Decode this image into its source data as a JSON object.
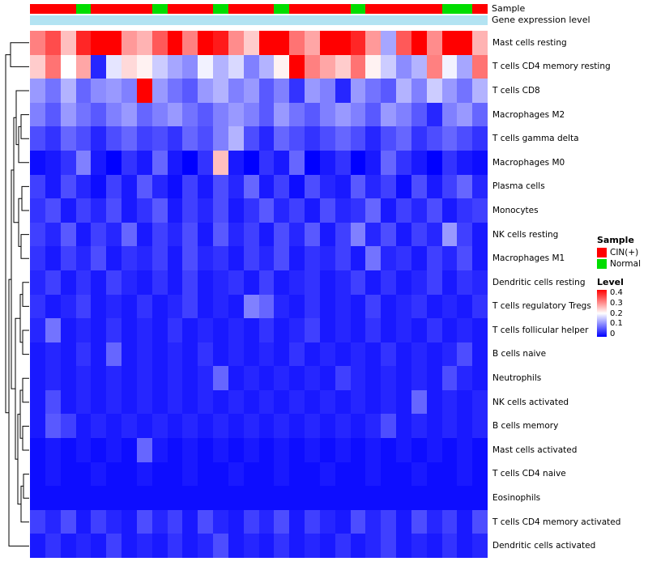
{
  "annotations": {
    "sample_label": "Sample",
    "gene_label": "Gene expression level",
    "gene_bar_color": "#B3E3F2",
    "sample_colors": {
      "CIN(+)": "#FF0000",
      "Normal": "#00DD00"
    }
  },
  "legends": {
    "sample": {
      "title": "Sample",
      "items": [
        {
          "label": "CIN(+)",
          "color": "#FF0000"
        },
        {
          "label": "Normal",
          "color": "#00DD00"
        }
      ]
    },
    "level": {
      "title": "Level",
      "ticks": [
        "0.4",
        "0.3",
        "0.2",
        "0.1",
        "0"
      ],
      "max_color": "#FF0000",
      "mid_color": "#FFFFFF",
      "min_color": "#0000FF"
    }
  },
  "chart_data": {
    "type": "heatmap",
    "title": "",
    "annotation_tracks": [
      "Sample",
      "Gene expression level"
    ],
    "rows": [
      "Mast cells resting",
      "T cells CD4 memory resting",
      "T cells CD8",
      "Macrophages M2",
      "T cells gamma delta",
      "Macrophages M0",
      "Plasma cells",
      "Monocytes",
      "NK cells resting",
      "Macrophages M1",
      "Dendritic cells resting",
      "T cells regulatory Tregs",
      "T cells follicular helper",
      "B cells naive",
      "Neutrophils",
      "NK cells activated",
      "B cells memory",
      "Mast cells activated",
      "T cells CD4 naive",
      "Eosinophils",
      "T cells CD4 memory activated",
      "Dendritic cells activated"
    ],
    "columns_count": 30,
    "column_annotation_sample": [
      "CIN(+)",
      "CIN(+)",
      "CIN(+)",
      "Normal",
      "CIN(+)",
      "CIN(+)",
      "CIN(+)",
      "CIN(+)",
      "Normal",
      "CIN(+)",
      "CIN(+)",
      "CIN(+)",
      "Normal",
      "CIN(+)",
      "CIN(+)",
      "CIN(+)",
      "Normal",
      "CIN(+)",
      "CIN(+)",
      "CIN(+)",
      "CIN(+)",
      "Normal",
      "CIN(+)",
      "CIN(+)",
      "CIN(+)",
      "CIN(+)",
      "CIN(+)",
      "Normal",
      "Normal",
      "CIN(+)"
    ],
    "color_scale": {
      "min": 0,
      "mid": 0.2,
      "max": 0.4,
      "colors": [
        "#0000FF",
        "#FFFFFF",
        "#FF0000"
      ]
    },
    "row_dendrogram": true,
    "values": [
      [
        0.3,
        0.34,
        0.25,
        0.37,
        0.42,
        0.4,
        0.28,
        0.26,
        0.33,
        0.41,
        0.3,
        0.43,
        0.38,
        0.29,
        0.24,
        0.42,
        0.4,
        0.31,
        0.27,
        0.4,
        0.43,
        0.37,
        0.28,
        0.13,
        0.33,
        0.42,
        0.29,
        0.43,
        0.4,
        0.26
      ],
      [
        0.24,
        0.31,
        0.2,
        0.27,
        0.03,
        0.18,
        0.23,
        0.21,
        0.16,
        0.13,
        0.11,
        0.19,
        0.14,
        0.17,
        0.1,
        0.14,
        0.21,
        0.41,
        0.3,
        0.27,
        0.24,
        0.31,
        0.21,
        0.16,
        0.11,
        0.14,
        0.3,
        0.19,
        0.13,
        0.31
      ],
      [
        0.12,
        0.09,
        0.14,
        0.08,
        0.11,
        0.12,
        0.1,
        0.42,
        0.12,
        0.09,
        0.07,
        0.12,
        0.14,
        0.1,
        0.12,
        0.07,
        0.1,
        0.04,
        0.12,
        0.1,
        0.03,
        0.12,
        0.09,
        0.07,
        0.14,
        0.1,
        0.16,
        0.12,
        0.09,
        0.14
      ],
      [
        0.1,
        0.07,
        0.12,
        0.09,
        0.07,
        0.1,
        0.12,
        0.08,
        0.1,
        0.12,
        0.09,
        0.07,
        0.1,
        0.12,
        0.1,
        0.07,
        0.12,
        0.09,
        0.07,
        0.1,
        0.12,
        0.1,
        0.07,
        0.12,
        0.1,
        0.07,
        0.03,
        0.1,
        0.12,
        0.08
      ],
      [
        0.06,
        0.04,
        0.08,
        0.06,
        0.03,
        0.06,
        0.08,
        0.05,
        0.06,
        0.04,
        0.08,
        0.06,
        0.1,
        0.14,
        0.06,
        0.03,
        0.08,
        0.06,
        0.04,
        0.06,
        0.08,
        0.06,
        0.03,
        0.06,
        0.08,
        0.04,
        0.06,
        0.08,
        0.06,
        0.04
      ],
      [
        0.01,
        0.02,
        0.04,
        0.1,
        0.02,
        0.0,
        0.04,
        0.02,
        0.08,
        0.02,
        0.0,
        0.04,
        0.25,
        0.02,
        0.0,
        0.04,
        0.02,
        0.08,
        0.0,
        0.02,
        0.04,
        0.0,
        0.02,
        0.08,
        0.04,
        0.02,
        0.0,
        0.04,
        0.02,
        0.01
      ],
      [
        0.05,
        0.02,
        0.06,
        0.03,
        0.01,
        0.05,
        0.02,
        0.07,
        0.03,
        0.01,
        0.05,
        0.02,
        0.06,
        0.03,
        0.08,
        0.02,
        0.05,
        0.01,
        0.06,
        0.03,
        0.02,
        0.07,
        0.03,
        0.05,
        0.01,
        0.06,
        0.02,
        0.05,
        0.08,
        0.03
      ],
      [
        0.04,
        0.06,
        0.02,
        0.05,
        0.03,
        0.06,
        0.02,
        0.04,
        0.07,
        0.02,
        0.05,
        0.03,
        0.06,
        0.02,
        0.04,
        0.07,
        0.03,
        0.05,
        0.02,
        0.06,
        0.03,
        0.04,
        0.08,
        0.02,
        0.05,
        0.03,
        0.06,
        0.02,
        0.04,
        0.05
      ],
      [
        0.05,
        0.03,
        0.07,
        0.02,
        0.05,
        0.03,
        0.08,
        0.02,
        0.05,
        0.03,
        0.06,
        0.02,
        0.07,
        0.03,
        0.05,
        0.02,
        0.06,
        0.03,
        0.07,
        0.02,
        0.05,
        0.1,
        0.03,
        0.06,
        0.02,
        0.05,
        0.03,
        0.12,
        0.05,
        0.02
      ],
      [
        0.04,
        0.02,
        0.05,
        0.03,
        0.06,
        0.02,
        0.04,
        0.03,
        0.05,
        0.02,
        0.06,
        0.03,
        0.04,
        0.02,
        0.05,
        0.03,
        0.06,
        0.02,
        0.04,
        0.03,
        0.05,
        0.02,
        0.09,
        0.03,
        0.04,
        0.02,
        0.05,
        0.03,
        0.06,
        0.02
      ],
      [
        0.03,
        0.05,
        0.02,
        0.04,
        0.02,
        0.05,
        0.03,
        0.02,
        0.04,
        0.02,
        0.05,
        0.02,
        0.03,
        0.04,
        0.02,
        0.05,
        0.02,
        0.03,
        0.04,
        0.02,
        0.03,
        0.05,
        0.02,
        0.04,
        0.02,
        0.03,
        0.05,
        0.02,
        0.04,
        0.03
      ],
      [
        0.04,
        0.02,
        0.03,
        0.05,
        0.02,
        0.03,
        0.02,
        0.04,
        0.02,
        0.03,
        0.05,
        0.02,
        0.03,
        0.02,
        0.1,
        0.08,
        0.03,
        0.02,
        0.04,
        0.02,
        0.03,
        0.02,
        0.05,
        0.02,
        0.03,
        0.04,
        0.02,
        0.03,
        0.02,
        0.04
      ],
      [
        0.03,
        0.09,
        0.02,
        0.03,
        0.02,
        0.04,
        0.02,
        0.03,
        0.02,
        0.04,
        0.02,
        0.03,
        0.02,
        0.03,
        0.02,
        0.04,
        0.02,
        0.03,
        0.05,
        0.02,
        0.03,
        0.02,
        0.04,
        0.02,
        0.03,
        0.02,
        0.04,
        0.02,
        0.03,
        0.02
      ],
      [
        0.02,
        0.03,
        0.02,
        0.04,
        0.02,
        0.08,
        0.02,
        0.03,
        0.02,
        0.03,
        0.02,
        0.04,
        0.02,
        0.03,
        0.02,
        0.03,
        0.02,
        0.04,
        0.02,
        0.03,
        0.02,
        0.03,
        0.02,
        0.04,
        0.02,
        0.03,
        0.02,
        0.03,
        0.06,
        0.02
      ],
      [
        0.02,
        0.03,
        0.02,
        0.03,
        0.02,
        0.03,
        0.02,
        0.03,
        0.02,
        0.03,
        0.02,
        0.03,
        0.08,
        0.02,
        0.03,
        0.02,
        0.03,
        0.02,
        0.03,
        0.02,
        0.05,
        0.03,
        0.02,
        0.03,
        0.02,
        0.03,
        0.02,
        0.06,
        0.03,
        0.02
      ],
      [
        0.02,
        0.06,
        0.02,
        0.03,
        0.02,
        0.03,
        0.02,
        0.03,
        0.02,
        0.03,
        0.02,
        0.03,
        0.02,
        0.03,
        0.02,
        0.03,
        0.02,
        0.03,
        0.02,
        0.03,
        0.02,
        0.03,
        0.02,
        0.03,
        0.02,
        0.08,
        0.02,
        0.03,
        0.02,
        0.03
      ],
      [
        0.02,
        0.07,
        0.05,
        0.02,
        0.03,
        0.02,
        0.03,
        0.02,
        0.03,
        0.02,
        0.03,
        0.02,
        0.03,
        0.02,
        0.03,
        0.02,
        0.03,
        0.02,
        0.03,
        0.02,
        0.03,
        0.02,
        0.03,
        0.06,
        0.02,
        0.03,
        0.02,
        0.03,
        0.02,
        0.03
      ],
      [
        0.01,
        0.02,
        0.01,
        0.02,
        0.01,
        0.02,
        0.01,
        0.08,
        0.02,
        0.01,
        0.02,
        0.01,
        0.02,
        0.01,
        0.02,
        0.01,
        0.02,
        0.01,
        0.02,
        0.01,
        0.02,
        0.01,
        0.02,
        0.01,
        0.02,
        0.01,
        0.02,
        0.01,
        0.02,
        0.01
      ],
      [
        0.01,
        0.02,
        0.01,
        0.01,
        0.02,
        0.01,
        0.01,
        0.02,
        0.01,
        0.01,
        0.02,
        0.01,
        0.01,
        0.02,
        0.01,
        0.01,
        0.02,
        0.01,
        0.01,
        0.02,
        0.01,
        0.01,
        0.02,
        0.01,
        0.01,
        0.02,
        0.01,
        0.01,
        0.02,
        0.01
      ],
      [
        0.01,
        0.01,
        0.01,
        0.01,
        0.01,
        0.01,
        0.01,
        0.01,
        0.01,
        0.01,
        0.01,
        0.01,
        0.01,
        0.01,
        0.01,
        0.01,
        0.01,
        0.01,
        0.01,
        0.01,
        0.01,
        0.01,
        0.01,
        0.01,
        0.01,
        0.01,
        0.01,
        0.01,
        0.01,
        0.01
      ],
      [
        0.05,
        0.03,
        0.06,
        0.02,
        0.05,
        0.03,
        0.02,
        0.06,
        0.03,
        0.05,
        0.02,
        0.06,
        0.03,
        0.02,
        0.05,
        0.03,
        0.06,
        0.02,
        0.05,
        0.03,
        0.02,
        0.06,
        0.03,
        0.05,
        0.02,
        0.06,
        0.03,
        0.05,
        0.02,
        0.06
      ],
      [
        0.02,
        0.04,
        0.02,
        0.03,
        0.02,
        0.05,
        0.02,
        0.03,
        0.02,
        0.04,
        0.02,
        0.03,
        0.06,
        0.02,
        0.03,
        0.02,
        0.04,
        0.02,
        0.03,
        0.02,
        0.04,
        0.02,
        0.03,
        0.05,
        0.02,
        0.03,
        0.02,
        0.04,
        0.02,
        0.03
      ]
    ]
  }
}
